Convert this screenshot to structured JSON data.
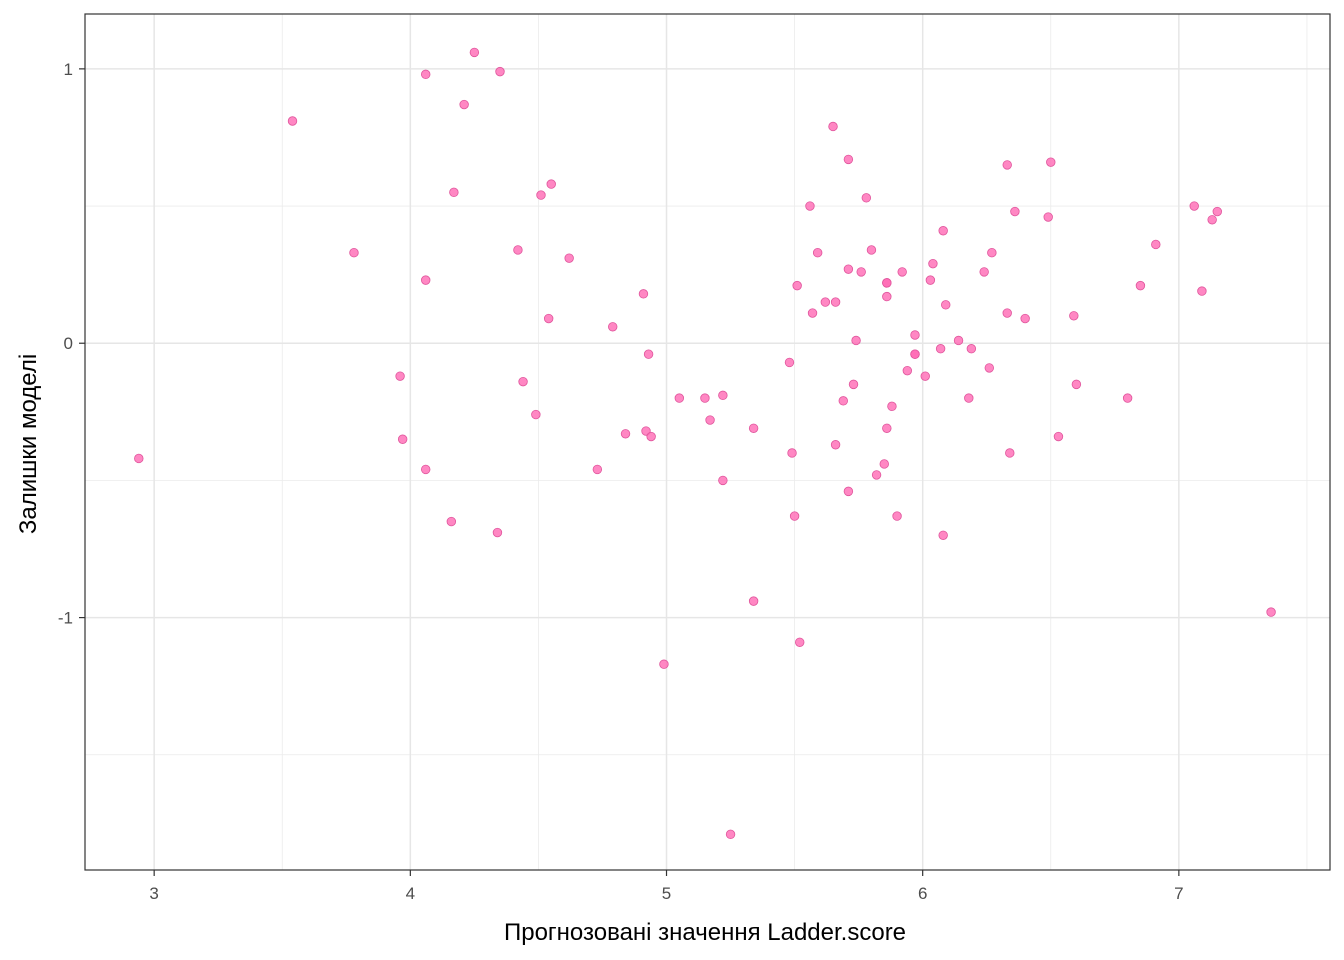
{
  "chart_data": {
    "type": "scatter",
    "title": "",
    "xlabel": "Прогнозовані значення Ladder.score",
    "ylabel": "Залишки моделі",
    "xlim": [
      2.73,
      7.59
    ],
    "ylim": [
      -1.92,
      1.2
    ],
    "x_ticks": [
      3,
      4,
      5,
      6,
      7
    ],
    "x_tick_labels": [
      "3",
      "4",
      "5",
      "6",
      "7"
    ],
    "y_ticks": [
      -1,
      0,
      1
    ],
    "y_tick_labels": [
      "-1",
      "0",
      "1"
    ],
    "grid": true,
    "point_color": "#ff69b4",
    "point_stroke": "#e0559c",
    "series": [
      {
        "x": [
          2.94,
          3.54,
          3.78,
          3.96,
          3.97,
          4.06,
          4.06,
          4.06,
          4.16,
          4.17,
          4.21,
          4.25,
          4.34,
          4.35,
          4.42,
          4.44,
          4.49,
          4.51,
          4.54,
          4.55,
          4.62,
          4.73,
          4.79,
          4.84,
          4.91,
          4.92,
          4.93,
          4.94,
          4.99,
          5.05,
          5.15,
          5.17,
          5.22,
          5.22,
          5.25,
          5.34,
          5.34,
          5.48,
          5.49,
          5.5,
          5.51,
          5.52,
          5.56,
          5.57,
          5.59,
          5.62,
          5.65,
          5.66,
          5.66,
          5.69,
          5.71,
          5.71,
          5.71,
          5.73,
          5.74,
          5.76,
          5.78,
          5.8,
          5.82,
          5.85,
          5.86,
          5.86,
          5.86,
          5.86,
          5.88,
          5.9,
          5.92,
          5.94,
          5.97,
          5.97,
          5.97,
          6.01,
          6.03,
          6.04,
          6.07,
          6.08,
          6.08,
          6.09,
          6.14,
          6.18,
          6.19,
          6.24,
          6.26,
          6.27,
          6.33,
          6.33,
          6.34,
          6.36,
          6.4,
          6.49,
          6.5,
          6.53,
          6.59,
          6.6,
          6.8,
          6.85,
          6.91,
          7.06,
          7.09,
          7.13,
          7.15,
          7.36
        ],
        "y": [
          -0.42,
          0.81,
          0.33,
          -0.12,
          -0.35,
          0.98,
          0.23,
          -0.46,
          -0.65,
          0.55,
          0.87,
          1.06,
          -0.69,
          0.99,
          0.34,
          -0.14,
          -0.26,
          0.54,
          0.09,
          0.58,
          0.31,
          -0.46,
          0.06,
          -0.33,
          0.18,
          -0.32,
          -0.04,
          -0.34,
          -1.17,
          -0.2,
          -0.2,
          -0.28,
          -0.19,
          -0.5,
          -1.79,
          -0.31,
          -0.94,
          -0.07,
          -0.4,
          -0.63,
          0.21,
          -1.09,
          0.5,
          0.11,
          0.33,
          0.15,
          0.79,
          -0.37,
          0.15,
          -0.21,
          0.27,
          0.67,
          -0.54,
          -0.15,
          0.01,
          0.26,
          0.53,
          0.34,
          -0.48,
          -0.44,
          0.17,
          -0.31,
          0.22,
          0.22,
          -0.23,
          -0.63,
          0.26,
          -0.1,
          0.03,
          -0.04,
          -0.04,
          -0.12,
          0.23,
          0.29,
          -0.02,
          0.41,
          -0.7,
          0.14,
          0.01,
          -0.2,
          -0.02,
          0.26,
          -0.09,
          0.33,
          0.65,
          0.11,
          -0.4,
          0.48,
          0.09,
          0.46,
          0.66,
          -0.34,
          0.1,
          -0.15,
          -0.2,
          0.21,
          0.36,
          0.5,
          0.19,
          0.45,
          0.48,
          -0.98
        ]
      }
    ]
  }
}
